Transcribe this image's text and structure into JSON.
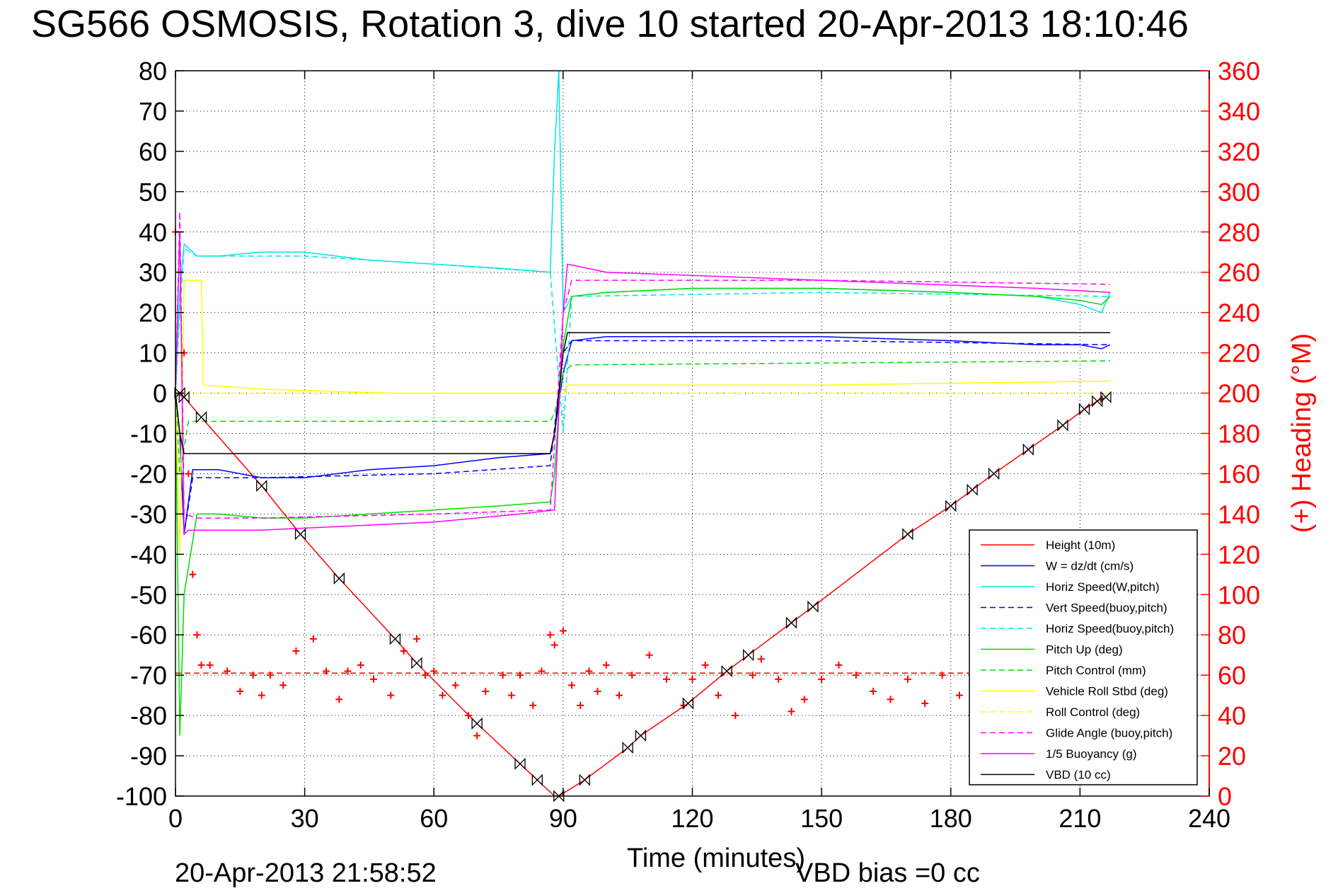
{
  "chart_data": {
    "type": "line",
    "title": "SG566 OSMOSIS, Rotation 3, dive 10 started 20-Apr-2013 18:10:46",
    "xlabel": "Time (minutes)",
    "ylabel_right": "(+) Heading (°M)",
    "footer_date": "20-Apr-2013 21:58:52",
    "footer_vbd": "VBD bias =0 cc",
    "xlim": [
      0,
      240
    ],
    "ylim": [
      -100,
      80
    ],
    "ylim_right": [
      0,
      360
    ],
    "x_ticks": [
      0,
      30,
      60,
      90,
      120,
      150,
      180,
      210,
      240
    ],
    "x_tick_labels": [
      "0",
      "30",
      "60",
      "90",
      "120",
      "150",
      "180",
      "210",
      "240"
    ],
    "y_ticks": [
      80,
      70,
      60,
      50,
      40,
      30,
      20,
      10,
      0,
      -10,
      -20,
      -30,
      -40,
      -50,
      -60,
      -70,
      -80,
      -90,
      -100
    ],
    "y_tick_labels": [
      "80",
      "70",
      "60",
      "50",
      "40",
      "30",
      "20",
      "10",
      "0",
      "-10",
      "-20",
      "-30",
      "-40",
      "-50",
      "-60",
      "-70",
      "-80",
      "-90",
      "-100"
    ],
    "y_right_ticks": [
      360,
      340,
      320,
      300,
      280,
      260,
      240,
      220,
      200,
      180,
      160,
      140,
      120,
      100,
      80,
      60,
      40,
      20,
      0
    ],
    "y_right_tick_labels": [
      "360",
      "340",
      "320",
      "300",
      "280",
      "260",
      "240",
      "220",
      "200",
      "180",
      "160",
      "140",
      "120",
      "100",
      "80",
      "60",
      "40",
      "20",
      "0"
    ],
    "grid": true,
    "legend_position": "bottom-right",
    "legend": [
      {
        "label": "Height (10m)",
        "color": "#ff0000",
        "dash": false
      },
      {
        "label": "W = dz/dt (cm/s)",
        "color": "#0000ff",
        "dash": false
      },
      {
        "label": "Horiz Speed(W,pitch)",
        "color": "#00e5e5",
        "dash": false
      },
      {
        "label": "Vert Speed(buoy,pitch)",
        "color": "#0000ff",
        "dash": true
      },
      {
        "label": "Horiz Speed(buoy,pitch)",
        "color": "#00e5e5",
        "dash": true
      },
      {
        "label": "Pitch Up (deg)",
        "color": "#00dd00",
        "dash": false
      },
      {
        "label": "Pitch Control (mm)",
        "color": "#00dd00",
        "dash": true
      },
      {
        "label": "Vehicle Roll Stbd (deg)",
        "color": "#ffff00",
        "dash": false
      },
      {
        "label": "Roll Control (deg)",
        "color": "#ffff00",
        "dash": true
      },
      {
        "label": "Glide Angle (buoy,pitch)",
        "color": "#ff00ff",
        "dash": true
      },
      {
        "label": "1/5 Buoyancy (g)",
        "color": "#ff00ff",
        "dash": false
      },
      {
        "label": "VBD (10 cc)",
        "color": "#000000",
        "dash": false
      }
    ],
    "series": [
      {
        "name": "Height (10m)",
        "color": "#ff0000",
        "dash": false,
        "x": [
          0,
          2,
          6,
          20,
          29,
          38,
          51,
          56,
          70,
          80,
          84,
          88,
          89,
          95,
          105,
          108,
          119,
          128,
          133,
          143,
          148,
          170,
          180,
          185,
          190,
          198,
          206,
          211,
          214,
          216
        ],
        "y": [
          0,
          -1,
          -6,
          -23,
          -35,
          -46,
          -61,
          -67,
          -82,
          -92,
          -96,
          -100,
          -100,
          -96,
          -88,
          -85,
          -77,
          -69,
          -65,
          -57,
          -53,
          -35,
          -28,
          -24,
          -20,
          -14,
          -8,
          -4,
          -2,
          -1
        ]
      },
      {
        "name": "W = dz/dt (cm/s)",
        "color": "#0000ff",
        "dash": false,
        "x": [
          0,
          1,
          2,
          4,
          10,
          20,
          30,
          45,
          60,
          75,
          87,
          88,
          90,
          92,
          100,
          120,
          150,
          180,
          200,
          210,
          215,
          217
        ],
        "y": [
          0,
          -10,
          -35,
          -19,
          -19,
          -21,
          -21,
          -19,
          -18,
          -16,
          -15,
          -10,
          5,
          13,
          14,
          14,
          14,
          13,
          12,
          12,
          11,
          12
        ]
      },
      {
        "name": "Horiz Speed(W,pitch)",
        "color": "#00e5e5",
        "dash": false,
        "x": [
          0,
          1,
          2,
          5,
          10,
          20,
          30,
          45,
          60,
          75,
          87,
          88,
          89,
          90,
          92,
          100,
          120,
          150,
          180,
          200,
          210,
          215,
          217
        ],
        "y": [
          0,
          25,
          37,
          34,
          34,
          35,
          35,
          33,
          32,
          31,
          30,
          60,
          80,
          20,
          24,
          25,
          26,
          26,
          25,
          24,
          22,
          20,
          25
        ]
      },
      {
        "name": "Vert Speed(buoy,pitch)",
        "color": "#0000ff",
        "dash": true,
        "x": [
          0,
          1,
          2,
          4,
          20,
          60,
          87,
          90,
          92,
          150,
          217
        ],
        "y": [
          0,
          -10,
          -35,
          -21,
          -21,
          -20,
          -18,
          10,
          13,
          13,
          12
        ]
      },
      {
        "name": "Horiz Speed(buoy,pitch)",
        "color": "#00e5e5",
        "dash": true,
        "x": [
          0,
          1,
          2,
          5,
          30,
          60,
          87,
          90,
          92,
          150,
          217
        ],
        "y": [
          0,
          20,
          36,
          34,
          34,
          32,
          30,
          -10,
          24,
          25,
          24
        ]
      },
      {
        "name": "Pitch Up (deg)",
        "color": "#00dd00",
        "dash": false,
        "x": [
          0,
          1,
          2,
          5,
          10,
          20,
          30,
          45,
          60,
          75,
          87,
          88,
          90,
          92,
          100,
          120,
          150,
          180,
          200,
          210,
          215,
          217
        ],
        "y": [
          0,
          -85,
          -50,
          -30,
          -30,
          -31,
          -31,
          -30,
          -29,
          -28,
          -27,
          -20,
          12,
          24,
          25,
          26,
          26,
          25,
          24,
          23,
          22,
          24
        ]
      },
      {
        "name": "Pitch Control (mm)",
        "color": "#00dd00",
        "dash": true,
        "x": [
          0,
          1,
          3,
          87,
          88,
          90,
          92,
          217
        ],
        "y": [
          0,
          -20,
          -7,
          -7,
          -5,
          5,
          7,
          8
        ]
      },
      {
        "name": "Vehicle Roll Stbd (deg)",
        "color": "#ffff00",
        "dash": false,
        "x": [
          0,
          1,
          2,
          3,
          6,
          6.5,
          20,
          50,
          88,
          90,
          91,
          150,
          217
        ],
        "y": [
          0,
          -40,
          28,
          28,
          28,
          2,
          1,
          0,
          0,
          0,
          2,
          2,
          3
        ]
      },
      {
        "name": "Roll Control (deg)",
        "color": "#ffff00",
        "dash": true,
        "x": [
          0,
          2,
          90,
          92,
          217
        ],
        "y": [
          0,
          0,
          0,
          0,
          0
        ]
      },
      {
        "name": "Glide Angle (buoy,pitch)",
        "color": "#ff00ff",
        "dash": true,
        "x": [
          0,
          1,
          2,
          5,
          20,
          60,
          87,
          90,
          92,
          150,
          217
        ],
        "y": [
          0,
          45,
          -30,
          -31,
          -31,
          -30,
          -29,
          20,
          28,
          28,
          27
        ]
      },
      {
        "name": "1/5 Buoyancy (g)",
        "color": "#ff00ff",
        "dash": false,
        "x": [
          0,
          1,
          2,
          3,
          5,
          20,
          40,
          60,
          80,
          88,
          90,
          91,
          100,
          150,
          200,
          217
        ],
        "y": [
          0,
          40,
          -35,
          -34,
          -34,
          -34,
          -33,
          -32,
          -30,
          -29,
          20,
          32,
          30,
          28,
          26,
          25
        ]
      },
      {
        "name": "VBD (10 cc)",
        "color": "#000000",
        "dash": false,
        "x": [
          0,
          1,
          2,
          87,
          88,
          90,
          91,
          217
        ],
        "y": [
          0,
          -10,
          -15,
          -15,
          -10,
          10,
          15,
          15
        ]
      },
      {
        "name": "(+) Heading (°M)",
        "color": "#ff0000",
        "axis": "right",
        "marker": "+",
        "x": [
          0,
          2,
          3,
          4,
          5,
          6,
          8,
          12,
          15,
          18,
          20,
          22,
          25,
          28,
          32,
          35,
          38,
          40,
          43,
          46,
          50,
          53,
          56,
          58,
          60,
          62,
          65,
          68,
          70,
          72,
          76,
          78,
          80,
          83,
          85,
          87,
          88,
          90,
          92,
          94,
          96,
          98,
          100,
          103,
          106,
          110,
          114,
          118,
          120,
          123,
          126,
          130,
          134,
          136,
          140,
          143,
          146,
          150,
          154,
          158,
          162,
          166,
          170,
          174,
          178,
          182,
          185
        ],
        "y": [
          280,
          220,
          160,
          110,
          80,
          65,
          65,
          62,
          52,
          60,
          50,
          60,
          55,
          72,
          78,
          62,
          48,
          62,
          65,
          58,
          50,
          72,
          78,
          60,
          62,
          50,
          55,
          40,
          30,
          52,
          60,
          50,
          60,
          45,
          62,
          80,
          75,
          82,
          55,
          45,
          62,
          52,
          65,
          50,
          60,
          70,
          58,
          45,
          58,
          65,
          50,
          40,
          60,
          68,
          58,
          42,
          48,
          58,
          65,
          60,
          52,
          48,
          58,
          46,
          60,
          50,
          40
        ]
      },
      {
        "name": "Heading reference",
        "color": "#ff0000",
        "axis": "right",
        "dash": true,
        "x": [
          0,
          217
        ],
        "y": [
          61,
          61
        ]
      }
    ],
    "markers": [
      {
        "x": 1,
        "y": 0
      },
      {
        "x": 2,
        "y": -1
      },
      {
        "x": 6,
        "y": -6
      },
      {
        "x": 20,
        "y": -23
      },
      {
        "x": 29,
        "y": -35
      },
      {
        "x": 38,
        "y": -46
      },
      {
        "x": 51,
        "y": -61
      },
      {
        "x": 56,
        "y": -67
      },
      {
        "x": 70,
        "y": -82
      },
      {
        "x": 80,
        "y": -92
      },
      {
        "x": 84,
        "y": -96
      },
      {
        "x": 89,
        "y": -100
      },
      {
        "x": 95,
        "y": -96
      },
      {
        "x": 105,
        "y": -88
      },
      {
        "x": 108,
        "y": -85
      },
      {
        "x": 119,
        "y": -77
      },
      {
        "x": 128,
        "y": -69
      },
      {
        "x": 133,
        "y": -65
      },
      {
        "x": 143,
        "y": -57
      },
      {
        "x": 148,
        "y": -53
      },
      {
        "x": 170,
        "y": -35
      },
      {
        "x": 180,
        "y": -28
      },
      {
        "x": 185,
        "y": -24
      },
      {
        "x": 190,
        "y": -20
      },
      {
        "x": 198,
        "y": -14
      },
      {
        "x": 206,
        "y": -8
      },
      {
        "x": 211,
        "y": -4
      },
      {
        "x": 214,
        "y": -2
      },
      {
        "x": 216,
        "y": -1
      }
    ]
  }
}
